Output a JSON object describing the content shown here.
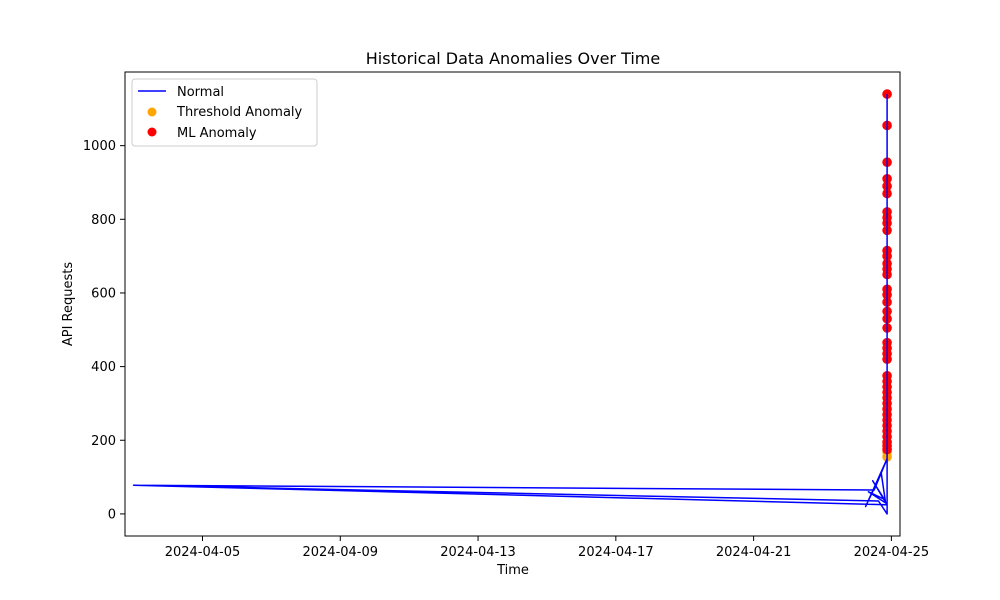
{
  "chart_data": {
    "type": "line",
    "title": "Historical Data Anomalies Over Time",
    "xlabel": "Time",
    "ylabel": "API Requests",
    "x_tick_labels": [
      "2024-04-05",
      "2024-04-09",
      "2024-04-13",
      "2024-04-17",
      "2024-04-21",
      "2024-04-25"
    ],
    "x_tick_dates": [
      "2024-04-05",
      "2024-04-09",
      "2024-04-13",
      "2024-04-17",
      "2024-04-21",
      "2024-04-25"
    ],
    "y_tick_labels": [
      "0",
      "200",
      "400",
      "600",
      "800",
      "1000"
    ],
    "y_tick_values": [
      0,
      200,
      400,
      600,
      800,
      1000
    ],
    "xlim": [
      "2024-04-02T18:00",
      "2024-04-25T06:00"
    ],
    "ylim": [
      -60,
      1200
    ],
    "grid": false,
    "legend_position": "top-left",
    "legend": [
      "Normal",
      "Threshold Anomaly",
      "ML Anomaly"
    ],
    "colors": {
      "normal": "#0000ff",
      "threshold": "#ffa500",
      "ml": "#ff0000"
    },
    "series": [
      {
        "name": "Normal",
        "kind": "line",
        "points": [
          {
            "x": "2024-04-03T00:00",
            "y": 78
          },
          {
            "x": "2024-04-24T12:00",
            "y": 65
          },
          {
            "x": "2024-04-24T21:00",
            "y": 150
          },
          {
            "x": "2024-04-24T06:00",
            "y": 20
          },
          {
            "x": "2024-04-24T17:00",
            "y": 110
          },
          {
            "x": "2024-04-24T20:00",
            "y": 30
          },
          {
            "x": "2024-04-24T08:00",
            "y": 60
          },
          {
            "x": "2024-04-24T19:00",
            "y": 40
          },
          {
            "x": "2024-04-24T11:00",
            "y": 90
          },
          {
            "x": "2024-04-24T21:00",
            "y": 25
          },
          {
            "x": "2024-04-03T00:00",
            "y": 78
          },
          {
            "x": "2024-04-24T15:00",
            "y": 35
          },
          {
            "x": "2024-04-24T21:00",
            "y": 0
          },
          {
            "x": "2024-04-24T21:00",
            "y": 1140
          }
        ]
      },
      {
        "name": "Threshold Anomaly",
        "kind": "scatter",
        "points": [
          {
            "x": "2024-04-24T21:00",
            "y": 155
          },
          {
            "x": "2024-04-24T21:00",
            "y": 168
          },
          {
            "x": "2024-04-24T21:00",
            "y": 178
          }
        ]
      },
      {
        "name": "ML Anomaly",
        "kind": "scatter",
        "points": [
          {
            "x": "2024-04-24T21:00",
            "y": 175
          },
          {
            "x": "2024-04-24T21:00",
            "y": 185
          },
          {
            "x": "2024-04-24T21:00",
            "y": 195
          },
          {
            "x": "2024-04-24T21:00",
            "y": 210
          },
          {
            "x": "2024-04-24T21:00",
            "y": 225
          },
          {
            "x": "2024-04-24T21:00",
            "y": 240
          },
          {
            "x": "2024-04-24T21:00",
            "y": 255
          },
          {
            "x": "2024-04-24T21:00",
            "y": 270
          },
          {
            "x": "2024-04-24T21:00",
            "y": 285
          },
          {
            "x": "2024-04-24T21:00",
            "y": 300
          },
          {
            "x": "2024-04-24T21:00",
            "y": 315
          },
          {
            "x": "2024-04-24T21:00",
            "y": 330
          },
          {
            "x": "2024-04-24T21:00",
            "y": 345
          },
          {
            "x": "2024-04-24T21:00",
            "y": 360
          },
          {
            "x": "2024-04-24T21:00",
            "y": 375
          },
          {
            "x": "2024-04-24T21:00",
            "y": 420
          },
          {
            "x": "2024-04-24T21:00",
            "y": 435
          },
          {
            "x": "2024-04-24T21:00",
            "y": 450
          },
          {
            "x": "2024-04-24T21:00",
            "y": 465
          },
          {
            "x": "2024-04-24T21:00",
            "y": 505
          },
          {
            "x": "2024-04-24T21:00",
            "y": 530
          },
          {
            "x": "2024-04-24T21:00",
            "y": 550
          },
          {
            "x": "2024-04-24T21:00",
            "y": 575
          },
          {
            "x": "2024-04-24T21:00",
            "y": 595
          },
          {
            "x": "2024-04-24T21:00",
            "y": 610
          },
          {
            "x": "2024-04-24T21:00",
            "y": 650
          },
          {
            "x": "2024-04-24T21:00",
            "y": 665
          },
          {
            "x": "2024-04-24T21:00",
            "y": 680
          },
          {
            "x": "2024-04-24T21:00",
            "y": 700
          },
          {
            "x": "2024-04-24T21:00",
            "y": 715
          },
          {
            "x": "2024-04-24T21:00",
            "y": 770
          },
          {
            "x": "2024-04-24T21:00",
            "y": 790
          },
          {
            "x": "2024-04-24T21:00",
            "y": 805
          },
          {
            "x": "2024-04-24T21:00",
            "y": 820
          },
          {
            "x": "2024-04-24T21:00",
            "y": 870
          },
          {
            "x": "2024-04-24T21:00",
            "y": 890
          },
          {
            "x": "2024-04-24T21:00",
            "y": 910
          },
          {
            "x": "2024-04-24T21:00",
            "y": 955
          },
          {
            "x": "2024-04-24T21:00",
            "y": 1055
          },
          {
            "x": "2024-04-24T21:00",
            "y": 1140
          }
        ]
      }
    ]
  }
}
